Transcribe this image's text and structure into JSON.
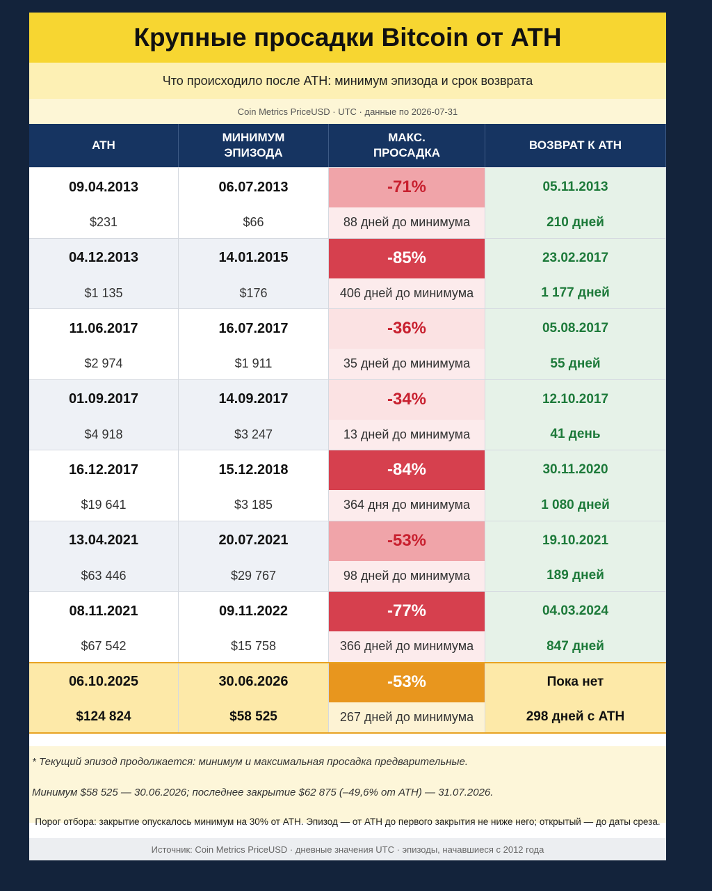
{
  "header": {
    "title": "Крупные просадки Bitcoin от ATH",
    "subtitle": "Что происходило после ATH: минимум эпизода и срок возврата",
    "source_line": "Coin Metrics PriceUSD · UTC · данные по 2026-07-31"
  },
  "table": {
    "columns": [
      "ATH",
      "МИНИМУМ ЭПИЗОДА",
      "МАКС. ПРОСАДКА",
      "ВОЗВРАТ К ATH"
    ],
    "rows": [
      {
        "ath": "09.04.2013",
        "ath_price": "$231",
        "min": "06.07.2013",
        "min_price": "$66",
        "drawdown": "-71%",
        "days_to_min": "88 дней до минимума",
        "return_date": "05.11.2013",
        "return_days": "210 дней",
        "color": "#f0a4a9",
        "text_color": "#c8202f"
      },
      {
        "ath": "04.12.2013",
        "ath_price": "$1 135",
        "min": "14.01.2015",
        "min_price": "$176",
        "drawdown": "-85%",
        "days_to_min": "406 дней до минимума",
        "return_date": "23.02.2017",
        "return_days": "1 177 дней",
        "color": "#d6404e",
        "text_color": "#ffffff"
      },
      {
        "ath": "11.06.2017",
        "ath_price": "$2 974",
        "min": "16.07.2017",
        "min_price": "$1 911",
        "drawdown": "-36%",
        "days_to_min": "35 дней до минимума",
        "return_date": "05.08.2017",
        "return_days": "55 дней",
        "color": "#fbe2e3",
        "text_color": "#c8202f"
      },
      {
        "ath": "01.09.2017",
        "ath_price": "$4 918",
        "min": "14.09.2017",
        "min_price": "$3 247",
        "drawdown": "-34%",
        "days_to_min": "13 дней до минимума",
        "return_date": "12.10.2017",
        "return_days": "41 день",
        "color": "#fbe2e3",
        "text_color": "#c8202f"
      },
      {
        "ath": "16.12.2017",
        "ath_price": "$19 641",
        "min": "15.12.2018",
        "min_price": "$3 185",
        "drawdown": "-84%",
        "days_to_min": "364 дня до минимума",
        "return_date": "30.11.2020",
        "return_days": "1 080 дней",
        "color": "#d6404e",
        "text_color": "#ffffff"
      },
      {
        "ath": "13.04.2021",
        "ath_price": "$63 446",
        "min": "20.07.2021",
        "min_price": "$29 767",
        "drawdown": "-53%",
        "days_to_min": "98 дней до минимума",
        "return_date": "19.10.2021",
        "return_days": "189 дней",
        "color": "#f0a4a9",
        "text_color": "#c8202f"
      },
      {
        "ath": "08.11.2021",
        "ath_price": "$67 542",
        "min": "09.11.2022",
        "min_price": "$15 758",
        "drawdown": "-77%",
        "days_to_min": "366 дней до минимума",
        "return_date": "04.03.2024",
        "return_days": "847 дней",
        "color": "#d6404e",
        "text_color": "#ffffff"
      }
    ],
    "current": {
      "ath": "06.10.2025",
      "ath_price": "$124 824",
      "min": "30.06.2026",
      "min_price": "$58 525",
      "drawdown": "-53%",
      "days_to_min": "267 дней до минимума",
      "return_date": "Пока нет",
      "return_days": "298 дней с ATH",
      "color": "#e8961e",
      "text_color": "#ffffff"
    }
  },
  "footer": {
    "note1": "* Текущий эпизод продолжается: минимум и максимальная просадка предварительные.",
    "note2": "Минимум $58 525 — 30.06.2026; последнее закрытие $62 875 (–49,6% от ATH) — 31.07.2026.",
    "threshold": "Порог отбора: закрытие опускалось минимум на 30% от ATH. Эпизод — от ATH до первого закрытия не ниже него; открытый — до даты среза.",
    "source": "Источник: Coin Metrics PriceUSD · дневные значения UTC · эпизоды, начавшиеся с 2012 года"
  }
}
